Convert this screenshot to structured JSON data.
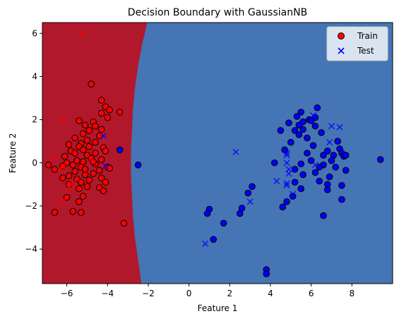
{
  "chart_data": {
    "type": "scatter",
    "title": "Decision Boundary with GaussianNB",
    "xlabel": "Feature 1",
    "ylabel": "Feature 2",
    "xlim": [
      -7.2,
      10.0
    ],
    "ylim": [
      -5.6,
      6.5
    ],
    "x_ticks": [
      -6,
      -4,
      -2,
      0,
      2,
      4,
      6,
      8
    ],
    "y_ticks": [
      -4,
      -2,
      0,
      2,
      4,
      6
    ],
    "grid": false,
    "legend_position": "top-right",
    "legend": [
      {
        "label": "Train",
        "marker": "circle"
      },
      {
        "label": "Test",
        "marker": "x"
      }
    ],
    "decision_regions": {
      "left_class_color": "#b2182b",
      "right_class_color": "#4575b4",
      "boundary_profile": [
        [
          6.5,
          -2.5
        ],
        [
          5.5,
          -2.75
        ],
        [
          4.5,
          -2.95
        ],
        [
          3.5,
          -3.1
        ],
        [
          2.5,
          -3.2
        ],
        [
          1.5,
          -3.25
        ],
        [
          0.5,
          -3.3
        ],
        [
          -0.5,
          -3.3
        ],
        [
          -1.5,
          -3.25
        ],
        [
          -2.5,
          -3.2
        ],
        [
          -3.5,
          -3.1
        ],
        [
          -4.5,
          -2.95
        ],
        [
          -5.5,
          -2.8
        ]
      ],
      "transition_width": 0.9,
      "transition_colors": [
        "#b2182b",
        "#d6604d",
        "#f4a582",
        "#fddbc7",
        "#f7f7f7",
        "#d1e5f0",
        "#92c5de",
        "#4393c3",
        "#4575b4"
      ]
    },
    "series": [
      {
        "name": "Train",
        "marker": "circle",
        "color": "#ff0000",
        "points": [
          [
            -4.8,
            3.65
          ],
          [
            -4.3,
            2.9
          ],
          [
            -4.1,
            2.6
          ],
          [
            -3.9,
            2.45
          ],
          [
            -3.4,
            2.35
          ],
          [
            -4.3,
            2.3
          ],
          [
            -4.0,
            2.1
          ],
          [
            -5.4,
            1.95
          ],
          [
            -4.7,
            1.9
          ],
          [
            -5.1,
            1.75
          ],
          [
            -4.6,
            1.7
          ],
          [
            -4.3,
            1.55
          ],
          [
            -4.9,
            1.5
          ],
          [
            -5.2,
            1.35
          ],
          [
            -4.4,
            1.25
          ],
          [
            -5.6,
            1.15
          ],
          [
            -5.0,
            1.05
          ],
          [
            -4.6,
            0.95
          ],
          [
            -5.3,
            0.9
          ],
          [
            -5.9,
            0.85
          ],
          [
            -4.9,
            0.75
          ],
          [
            -5.4,
            0.75
          ],
          [
            -4.2,
            0.7
          ],
          [
            -5.2,
            0.6
          ],
          [
            -4.1,
            0.55
          ],
          [
            -5.8,
            0.55
          ],
          [
            -5.6,
            0.45
          ],
          [
            -4.6,
            0.45
          ],
          [
            -5.0,
            0.35
          ],
          [
            -6.1,
            0.3
          ],
          [
            -4.8,
            0.2
          ],
          [
            -4.3,
            0.15
          ],
          [
            -5.5,
            0.1
          ],
          [
            -5.2,
            0.05
          ],
          [
            -6.0,
            0.0
          ],
          [
            -4.6,
            -0.05
          ],
          [
            -6.9,
            -0.1
          ],
          [
            -6.2,
            -0.15
          ],
          [
            -5.3,
            -0.2
          ],
          [
            -4.0,
            -0.2
          ],
          [
            -3.9,
            -0.25
          ],
          [
            -6.6,
            -0.3
          ],
          [
            -4.4,
            -0.35
          ],
          [
            -5.6,
            -0.4
          ],
          [
            -4.7,
            -0.5
          ],
          [
            -5.1,
            -0.55
          ],
          [
            -5.9,
            -0.6
          ],
          [
            -6.2,
            -0.7
          ],
          [
            -4.3,
            -0.7
          ],
          [
            -5.5,
            -0.75
          ],
          [
            -4.9,
            -0.8
          ],
          [
            -4.1,
            -0.9
          ],
          [
            -5.3,
            -0.9
          ],
          [
            -5.9,
            -1.0
          ],
          [
            -5.0,
            -1.1
          ],
          [
            -4.4,
            -1.15
          ],
          [
            -5.4,
            -1.2
          ],
          [
            -4.2,
            -1.3
          ],
          [
            -5.2,
            -1.55
          ],
          [
            -6.0,
            -1.6
          ],
          [
            -5.4,
            -1.8
          ],
          [
            -6.6,
            -2.3
          ],
          [
            -5.7,
            -2.25
          ],
          [
            -5.3,
            -2.3
          ],
          [
            -3.2,
            -2.8
          ],
          [
            -5.1,
            -0.3
          ],
          [
            -4.7,
            0.05
          ],
          [
            -5.7,
            -0.1
          ]
        ]
      },
      {
        "name": "Train",
        "marker": "circle",
        "color": "#0000ff",
        "points": [
          [
            -3.4,
            0.6
          ],
          [
            -2.5,
            -0.1
          ],
          [
            6.3,
            2.55
          ],
          [
            5.5,
            2.35
          ],
          [
            6.2,
            2.1
          ],
          [
            5.3,
            2.15
          ],
          [
            5.9,
            2.0
          ],
          [
            6.0,
            1.95
          ],
          [
            5.6,
            1.9
          ],
          [
            4.9,
            1.85
          ],
          [
            5.4,
            1.75
          ],
          [
            6.2,
            1.7
          ],
          [
            5.6,
            1.55
          ],
          [
            5.2,
            1.5
          ],
          [
            4.5,
            1.5
          ],
          [
            6.5,
            1.4
          ],
          [
            5.4,
            1.3
          ],
          [
            5.8,
            1.15
          ],
          [
            7.3,
            1.0
          ],
          [
            5.0,
            0.95
          ],
          [
            6.1,
            0.8
          ],
          [
            7.4,
            0.65
          ],
          [
            4.7,
            0.6
          ],
          [
            6.8,
            0.55
          ],
          [
            5.8,
            0.45
          ],
          [
            7.5,
            0.45
          ],
          [
            6.6,
            0.35
          ],
          [
            7.1,
            0.35
          ],
          [
            7.6,
            0.3
          ],
          [
            7.7,
            0.35
          ],
          [
            9.4,
            0.15
          ],
          [
            6.0,
            0.1
          ],
          [
            7.0,
            0.1
          ],
          [
            4.2,
            0.0
          ],
          [
            5.5,
            -0.05
          ],
          [
            6.6,
            -0.1
          ],
          [
            6.4,
            -0.2
          ],
          [
            7.2,
            -0.2
          ],
          [
            5.2,
            -0.3
          ],
          [
            7.7,
            -0.35
          ],
          [
            6.2,
            -0.45
          ],
          [
            5.6,
            -0.55
          ],
          [
            6.9,
            -0.65
          ],
          [
            6.4,
            -0.85
          ],
          [
            5.2,
            -0.9
          ],
          [
            6.8,
            -1.0
          ],
          [
            7.5,
            -1.05
          ],
          [
            5.5,
            -1.2
          ],
          [
            6.8,
            -1.25
          ],
          [
            5.1,
            -1.55
          ],
          [
            7.5,
            -1.7
          ],
          [
            4.8,
            -1.8
          ],
          [
            4.6,
            -2.05
          ],
          [
            6.6,
            -2.45
          ],
          [
            3.1,
            -1.1
          ],
          [
            2.9,
            -1.4
          ],
          [
            2.6,
            -2.1
          ],
          [
            2.5,
            -2.35
          ],
          [
            1.0,
            -2.15
          ],
          [
            0.9,
            -2.35
          ],
          [
            1.7,
            -2.8
          ],
          [
            1.2,
            -3.55
          ],
          [
            3.8,
            -4.95
          ],
          [
            3.8,
            -5.15
          ]
        ]
      },
      {
        "name": "Test",
        "marker": "x",
        "color": "#ff0000",
        "points": [
          [
            -5.3,
            6.0
          ],
          [
            -6.2,
            1.95
          ],
          [
            -6.6,
            0.25
          ],
          [
            -6.2,
            -0.35
          ],
          [
            -5.7,
            -0.95
          ],
          [
            -5.9,
            -1.15
          ],
          [
            -6.2,
            -1.8
          ],
          [
            -4.8,
            0.2
          ]
        ]
      },
      {
        "name": "Test",
        "marker": "x",
        "color": "#0000ff",
        "points": [
          [
            -4.2,
            1.25
          ],
          [
            -4.1,
            -0.15
          ],
          [
            6.1,
            2.2
          ],
          [
            7.0,
            1.7
          ],
          [
            7.4,
            1.65
          ],
          [
            6.9,
            0.95
          ],
          [
            2.3,
            0.5
          ],
          [
            4.8,
            0.45
          ],
          [
            4.8,
            0.35
          ],
          [
            4.8,
            0.0
          ],
          [
            6.2,
            -0.1
          ],
          [
            4.9,
            -0.3
          ],
          [
            4.9,
            -0.5
          ],
          [
            4.3,
            -0.85
          ],
          [
            4.8,
            -0.95
          ],
          [
            4.8,
            -1.05
          ],
          [
            5.1,
            -1.45
          ],
          [
            3.0,
            -1.8
          ],
          [
            0.8,
            -3.75
          ]
        ]
      }
    ]
  }
}
